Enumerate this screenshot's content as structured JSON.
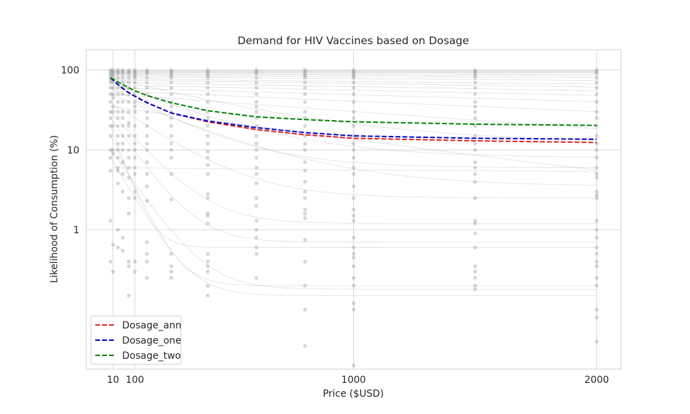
{
  "chart_data": {
    "type": "line",
    "title": "Demand for HIV Vaccines based on Dosage",
    "xlabel": "Price ($USD)",
    "ylabel": "Likelihood of Consumption (%)",
    "x_scale": "linear",
    "y_scale": "log",
    "xlim": [
      -100,
      2100
    ],
    "ylim": [
      0.018,
      180
    ],
    "x_ticks": [
      10,
      100,
      1000,
      2000
    ],
    "x_tick_labels": [
      "10",
      "100",
      "1000",
      "2000"
    ],
    "y_ticks": [
      1,
      10,
      100
    ],
    "y_tick_labels": [
      "1",
      "10",
      "100"
    ],
    "grid": true,
    "legend_position": "lower-left",
    "price_points": [
      0,
      10,
      30,
      50,
      75,
      100,
      150,
      250,
      400,
      600,
      800,
      1000,
      1500,
      2000
    ],
    "series": [
      {
        "name": "Dosage_ann",
        "color": "#e41a1c",
        "dash": true,
        "x": [
          0,
          10,
          30,
          50,
          75,
          100,
          150,
          250,
          400,
          600,
          800,
          1000,
          1500,
          2000
        ],
        "y": [
          80,
          75,
          66,
          59,
          52,
          47,
          39,
          29,
          22.5,
          18,
          15.5,
          14,
          13,
          12.4
        ]
      },
      {
        "name": "Dosage_one",
        "color": "#0000cc",
        "dash": true,
        "x": [
          0,
          10,
          30,
          50,
          75,
          100,
          150,
          250,
          400,
          600,
          800,
          1000,
          1500,
          2000
        ],
        "y": [
          80,
          75,
          66,
          59,
          52,
          47,
          39,
          29,
          23,
          19,
          16.5,
          15,
          14,
          13.6
        ]
      },
      {
        "name": "Dosage_two",
        "color": "#008000",
        "dash": true,
        "x": [
          0,
          10,
          30,
          50,
          75,
          100,
          150,
          250,
          400,
          600,
          800,
          1000,
          1500,
          2000
        ],
        "y": [
          80,
          77,
          71,
          66,
          60,
          55,
          48,
          39,
          31,
          26,
          24,
          22.5,
          21,
          20.3
        ]
      }
    ],
    "individual_curves": [
      {
        "a": 98,
        "b": 0.0
      },
      {
        "a": 96,
        "b": 0.0
      },
      {
        "a": 94,
        "b": 0.0
      },
      {
        "a": 92,
        "b": 0.0
      },
      {
        "a": 90,
        "b": 1e-05
      },
      {
        "a": 88,
        "b": 2e-05
      },
      {
        "a": 85,
        "b": 3e-05
      },
      {
        "a": 82,
        "b": 5e-05
      },
      {
        "a": 78,
        "b": 8e-05
      },
      {
        "a": 75,
        "b": 0.0001
      },
      {
        "a": 70,
        "b": 0.00012
      },
      {
        "a": 65,
        "b": 0.00015
      },
      {
        "a": 60,
        "b": 0.0002
      },
      {
        "a": 55,
        "b": 0.0003
      },
      {
        "a": 50,
        "b": 0.0005
      },
      {
        "a": 80,
        "b": 0.002,
        "floor": 12
      },
      {
        "a": 70,
        "b": 0.003,
        "floor": 8
      },
      {
        "a": 60,
        "b": 0.004,
        "floor": 6
      },
      {
        "a": 50,
        "b": 0.003,
        "floor": 3.5
      },
      {
        "a": 40,
        "b": 0.005,
        "floor": 2.5
      },
      {
        "a": 30,
        "b": 0.008,
        "floor": 1.2
      },
      {
        "a": 25,
        "b": 0.01,
        "floor": 0.7
      },
      {
        "a": 20,
        "b": 0.02,
        "floor": 0.6
      },
      {
        "a": 15,
        "b": 0.015,
        "floor": 0.2
      },
      {
        "a": 10,
        "b": 0.01,
        "floor": 0.18
      },
      {
        "a": 8,
        "b": 0.012,
        "floor": 0.15
      },
      {
        "a": 6,
        "b": 0.0005,
        "floor": 5
      },
      {
        "a": 35,
        "b": 0.001,
        "floor": 1.0
      }
    ],
    "scatter_points": [
      [
        0,
        100
      ],
      [
        0,
        95
      ],
      [
        0,
        90
      ],
      [
        0,
        85
      ],
      [
        0,
        80
      ],
      [
        0,
        75
      ],
      [
        0,
        70
      ],
      [
        0,
        60
      ],
      [
        0,
        50
      ],
      [
        0,
        40
      ],
      [
        0,
        30
      ],
      [
        0,
        25
      ],
      [
        0,
        20
      ],
      [
        0,
        15
      ],
      [
        0,
        10
      ],
      [
        0,
        8
      ],
      [
        0,
        5.5
      ],
      [
        0,
        1.3
      ],
      [
        0,
        0.4
      ],
      [
        10,
        100
      ],
      [
        10,
        95
      ],
      [
        10,
        90
      ],
      [
        10,
        85
      ],
      [
        10,
        80
      ],
      [
        10,
        70
      ],
      [
        10,
        60
      ],
      [
        10,
        50
      ],
      [
        10,
        45
      ],
      [
        10,
        35
      ],
      [
        10,
        30
      ],
      [
        10,
        20
      ],
      [
        10,
        10
      ],
      [
        10,
        9
      ],
      [
        10,
        0.65
      ],
      [
        10,
        0.3
      ],
      [
        30,
        100
      ],
      [
        30,
        95
      ],
      [
        30,
        90
      ],
      [
        30,
        80
      ],
      [
        30,
        70
      ],
      [
        30,
        60
      ],
      [
        30,
        50
      ],
      [
        30,
        40
      ],
      [
        30,
        30
      ],
      [
        30,
        25
      ],
      [
        30,
        20
      ],
      [
        30,
        15
      ],
      [
        30,
        12
      ],
      [
        30,
        10
      ],
      [
        30,
        8
      ],
      [
        30,
        6
      ],
      [
        30,
        5.5
      ],
      [
        30,
        3.8
      ],
      [
        30,
        1.0
      ],
      [
        30,
        0.6
      ],
      [
        50,
        100
      ],
      [
        50,
        95
      ],
      [
        50,
        90
      ],
      [
        50,
        80
      ],
      [
        50,
        70
      ],
      [
        50,
        60
      ],
      [
        50,
        50
      ],
      [
        50,
        40
      ],
      [
        50,
        30
      ],
      [
        50,
        25
      ],
      [
        50,
        20
      ],
      [
        50,
        15
      ],
      [
        50,
        12
      ],
      [
        50,
        10
      ],
      [
        50,
        7
      ],
      [
        50,
        5
      ],
      [
        50,
        3
      ],
      [
        50,
        0.8
      ],
      [
        50,
        0.55
      ],
      [
        75,
        100
      ],
      [
        75,
        95
      ],
      [
        75,
        90
      ],
      [
        75,
        80
      ],
      [
        75,
        70
      ],
      [
        75,
        60
      ],
      [
        75,
        50
      ],
      [
        75,
        40
      ],
      [
        75,
        30
      ],
      [
        75,
        22
      ],
      [
        75,
        20
      ],
      [
        75,
        15
      ],
      [
        75,
        10
      ],
      [
        75,
        8
      ],
      [
        75,
        6
      ],
      [
        75,
        4.5
      ],
      [
        75,
        2.5
      ],
      [
        75,
        1.6
      ],
      [
        75,
        0.4
      ],
      [
        75,
        0.35
      ],
      [
        75,
        0.15
      ],
      [
        100,
        100
      ],
      [
        100,
        95
      ],
      [
        100,
        90
      ],
      [
        100,
        85
      ],
      [
        100,
        80
      ],
      [
        100,
        70
      ],
      [
        100,
        60
      ],
      [
        100,
        50
      ],
      [
        100,
        40
      ],
      [
        100,
        35
      ],
      [
        100,
        30
      ],
      [
        100,
        20
      ],
      [
        100,
        15
      ],
      [
        100,
        12
      ],
      [
        100,
        10
      ],
      [
        100,
        8
      ],
      [
        100,
        6
      ],
      [
        100,
        5
      ],
      [
        100,
        3
      ],
      [
        100,
        2.5
      ],
      [
        100,
        0.4
      ],
      [
        100,
        0.3
      ],
      [
        150,
        100
      ],
      [
        150,
        95
      ],
      [
        150,
        90
      ],
      [
        150,
        80
      ],
      [
        150,
        70
      ],
      [
        150,
        60
      ],
      [
        150,
        50
      ],
      [
        150,
        40
      ],
      [
        150,
        30
      ],
      [
        150,
        25
      ],
      [
        150,
        20
      ],
      [
        150,
        15
      ],
      [
        150,
        12
      ],
      [
        150,
        10
      ],
      [
        150,
        7
      ],
      [
        150,
        5
      ],
      [
        150,
        3.5
      ],
      [
        150,
        2.3
      ],
      [
        150,
        0.7
      ],
      [
        150,
        0.5
      ],
      [
        150,
        0.4
      ],
      [
        150,
        0.25
      ],
      [
        150,
        0.07
      ],
      [
        150,
        0.06
      ],
      [
        250,
        100
      ],
      [
        250,
        95
      ],
      [
        250,
        90
      ],
      [
        250,
        85
      ],
      [
        250,
        80
      ],
      [
        250,
        70
      ],
      [
        250,
        60
      ],
      [
        250,
        50
      ],
      [
        250,
        40
      ],
      [
        250,
        35
      ],
      [
        250,
        30
      ],
      [
        250,
        25
      ],
      [
        250,
        20
      ],
      [
        250,
        15
      ],
      [
        250,
        12
      ],
      [
        250,
        10
      ],
      [
        250,
        8
      ],
      [
        250,
        5
      ],
      [
        250,
        2.4
      ],
      [
        250,
        0.5
      ],
      [
        250,
        0.35
      ],
      [
        250,
        0.3
      ],
      [
        250,
        0.25
      ],
      [
        400,
        100
      ],
      [
        400,
        95
      ],
      [
        400,
        90
      ],
      [
        400,
        85
      ],
      [
        400,
        80
      ],
      [
        400,
        70
      ],
      [
        400,
        60
      ],
      [
        400,
        50
      ],
      [
        400,
        40
      ],
      [
        400,
        30
      ],
      [
        400,
        25
      ],
      [
        400,
        20
      ],
      [
        400,
        15
      ],
      [
        400,
        12
      ],
      [
        400,
        9.5
      ],
      [
        400,
        8
      ],
      [
        400,
        6.5
      ],
      [
        400,
        5
      ],
      [
        400,
        2.8
      ],
      [
        400,
        2.5
      ],
      [
        400,
        1.6
      ],
      [
        400,
        1.5
      ],
      [
        400,
        1.2
      ],
      [
        400,
        0.5
      ],
      [
        400,
        0.4
      ],
      [
        400,
        0.35
      ],
      [
        400,
        0.3
      ],
      [
        400,
        0.2
      ],
      [
        400,
        0.15
      ],
      [
        600,
        100
      ],
      [
        600,
        95
      ],
      [
        600,
        90
      ],
      [
        600,
        80
      ],
      [
        600,
        70
      ],
      [
        600,
        60
      ],
      [
        600,
        50
      ],
      [
        600,
        40
      ],
      [
        600,
        35
      ],
      [
        600,
        30
      ],
      [
        600,
        25
      ],
      [
        600,
        20
      ],
      [
        600,
        15
      ],
      [
        600,
        12
      ],
      [
        600,
        10
      ],
      [
        600,
        8
      ],
      [
        600,
        6
      ],
      [
        600,
        5
      ],
      [
        600,
        3.8
      ],
      [
        600,
        2.5
      ],
      [
        600,
        2
      ],
      [
        600,
        1.3
      ],
      [
        600,
        1.0
      ],
      [
        600,
        0.8
      ],
      [
        600,
        0.6
      ],
      [
        600,
        0.5
      ],
      [
        600,
        0.25
      ],
      [
        800,
        100
      ],
      [
        800,
        95
      ],
      [
        800,
        90
      ],
      [
        800,
        85
      ],
      [
        800,
        80
      ],
      [
        800,
        70
      ],
      [
        800,
        60
      ],
      [
        800,
        50
      ],
      [
        800,
        40
      ],
      [
        800,
        30
      ],
      [
        800,
        25
      ],
      [
        800,
        20
      ],
      [
        800,
        15
      ],
      [
        800,
        12
      ],
      [
        800,
        10
      ],
      [
        800,
        7
      ],
      [
        800,
        5.5
      ],
      [
        800,
        4
      ],
      [
        800,
        3
      ],
      [
        800,
        2.5
      ],
      [
        800,
        1.8
      ],
      [
        800,
        1.6
      ],
      [
        800,
        1.4
      ],
      [
        800,
        0.75
      ],
      [
        800,
        0.4
      ],
      [
        800,
        0.2
      ],
      [
        800,
        0.1
      ],
      [
        800,
        0.035
      ],
      [
        1000,
        100
      ],
      [
        1000,
        95
      ],
      [
        1000,
        90
      ],
      [
        1000,
        85
      ],
      [
        1000,
        80
      ],
      [
        1000,
        70
      ],
      [
        1000,
        60
      ],
      [
        1000,
        50
      ],
      [
        1000,
        40
      ],
      [
        1000,
        30
      ],
      [
        1000,
        25
      ],
      [
        1000,
        20
      ],
      [
        1000,
        15
      ],
      [
        1000,
        12
      ],
      [
        1000,
        10
      ],
      [
        1000,
        8
      ],
      [
        1000,
        6
      ],
      [
        1000,
        5
      ],
      [
        1000,
        3.5
      ],
      [
        1000,
        2.5
      ],
      [
        1000,
        1.8
      ],
      [
        1000,
        1.5
      ],
      [
        1000,
        1.3
      ],
      [
        1000,
        0.8
      ],
      [
        1000,
        0.6
      ],
      [
        1000,
        0.5
      ],
      [
        1000,
        0.45
      ],
      [
        1000,
        0.35
      ],
      [
        1000,
        0.25
      ],
      [
        1000,
        0.2
      ],
      [
        1000,
        0.12
      ],
      [
        1000,
        0.1
      ],
      [
        1000,
        0.02
      ],
      [
        1500,
        100
      ],
      [
        1500,
        95
      ],
      [
        1500,
        90
      ],
      [
        1500,
        85
      ],
      [
        1500,
        80
      ],
      [
        1500,
        70
      ],
      [
        1500,
        60
      ],
      [
        1500,
        50
      ],
      [
        1500,
        40
      ],
      [
        1500,
        35
      ],
      [
        1500,
        30
      ],
      [
        1500,
        25
      ],
      [
        1500,
        20
      ],
      [
        1500,
        15
      ],
      [
        1500,
        12
      ],
      [
        1500,
        10
      ],
      [
        1500,
        7
      ],
      [
        1500,
        6
      ],
      [
        1500,
        5
      ],
      [
        1500,
        4
      ],
      [
        1500,
        2.5
      ],
      [
        1500,
        1.3
      ],
      [
        1500,
        1.2
      ],
      [
        1500,
        0.9
      ],
      [
        1500,
        0.6
      ],
      [
        1500,
        0.35
      ],
      [
        1500,
        0.3
      ],
      [
        1500,
        0.25
      ],
      [
        1500,
        0.2
      ],
      [
        1500,
        0.18
      ],
      [
        2000,
        100
      ],
      [
        2000,
        95
      ],
      [
        2000,
        90
      ],
      [
        2000,
        80
      ],
      [
        2000,
        70
      ],
      [
        2000,
        60
      ],
      [
        2000,
        50
      ],
      [
        2000,
        40
      ],
      [
        2000,
        30
      ],
      [
        2000,
        25
      ],
      [
        2000,
        20
      ],
      [
        2000,
        15
      ],
      [
        2000,
        12
      ],
      [
        2000,
        10
      ],
      [
        2000,
        8
      ],
      [
        2000,
        6
      ],
      [
        2000,
        5
      ],
      [
        2000,
        4.5
      ],
      [
        2000,
        3
      ],
      [
        2000,
        2.7
      ],
      [
        2000,
        2.5
      ],
      [
        2000,
        1.3
      ],
      [
        2000,
        1.0
      ],
      [
        2000,
        0.8
      ],
      [
        2000,
        0.6
      ],
      [
        2000,
        0.5
      ],
      [
        2000,
        0.4
      ],
      [
        2000,
        0.35
      ],
      [
        2000,
        0.25
      ],
      [
        2000,
        0.2
      ],
      [
        2000,
        0.1
      ],
      [
        2000,
        0.08
      ],
      [
        2000,
        0.04
      ]
    ]
  }
}
